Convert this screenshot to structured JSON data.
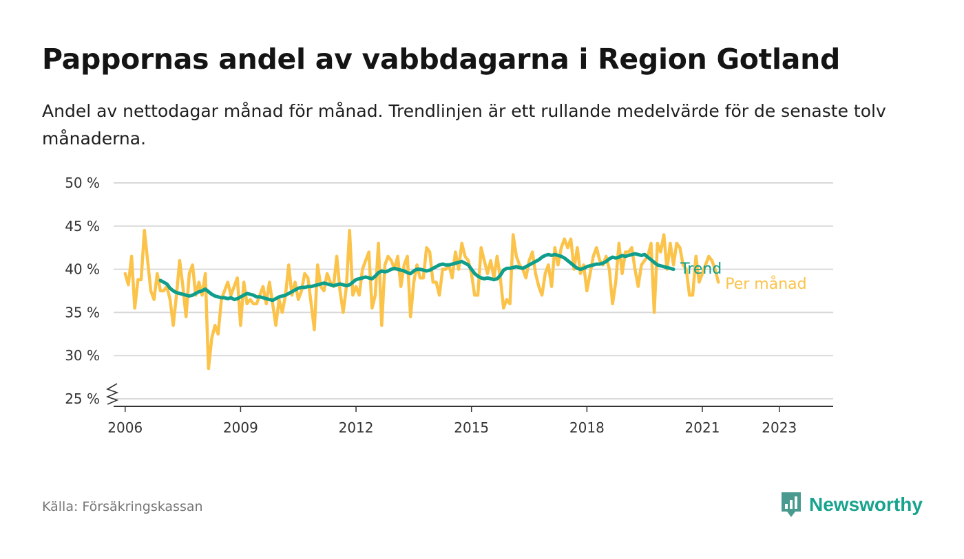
{
  "title": "Pappornas andel av vabbdagarna i Region Gotland",
  "subtitle": "Andel av nettodagar månad för månad. Trendlinjen är ett rullande medelvärde för de senaste tolv månaderna.",
  "source": "Källa: Försäkringskassan",
  "brand": "Newsworthy",
  "colors": {
    "monthly": "#fbc34a",
    "trend": "#0f9e8b",
    "grid": "#d9d9d9",
    "axis": "#333333"
  },
  "chart_data": {
    "type": "line",
    "title": "Pappornas andel av vabbdagarna i Region Gotland",
    "xlabel": "",
    "ylabel": "",
    "xlim": [
      2005.7,
      2024.4
    ],
    "ylim": [
      25,
      50
    ],
    "y_ticks": [
      25,
      30,
      35,
      40,
      45,
      50
    ],
    "y_tick_labels": [
      "25 %",
      "30 %",
      "35 %",
      "40 %",
      "45 %",
      "50 %"
    ],
    "x_ticks": [
      2006,
      2009,
      2012,
      2015,
      2018,
      2021,
      2023
    ],
    "x_tick_labels": [
      "2006",
      "2009",
      "2012",
      "2015",
      "2018",
      "2021",
      "2023"
    ],
    "grid": true,
    "axis_break": true,
    "series": [
      {
        "name": "Per månad",
        "start": 2006.0,
        "step": 0.08333,
        "values": [
          39.5,
          38.2,
          41.5,
          35.5,
          38.8,
          38.8,
          44.5,
          41.0,
          37.5,
          36.5,
          39.5,
          37.5,
          37.5,
          38.0,
          36.5,
          33.5,
          37.0,
          41.0,
          38.0,
          34.5,
          39.5,
          40.5,
          37.0,
          38.5,
          37.0,
          39.5,
          28.5,
          32.0,
          33.5,
          32.5,
          36.5,
          37.5,
          38.5,
          37.0,
          38.0,
          39.0,
          33.5,
          38.5,
          36.0,
          36.5,
          36.0,
          36.0,
          37.0,
          38.0,
          36.0,
          38.5,
          36.0,
          33.5,
          36.5,
          35.0,
          37.0,
          40.5,
          37.0,
          38.5,
          36.5,
          37.5,
          39.5,
          39.0,
          36.0,
          33.0,
          40.5,
          38.0,
          37.5,
          39.5,
          38.5,
          38.0,
          41.5,
          37.5,
          35.0,
          38.0,
          44.5,
          37.0,
          38.0,
          37.0,
          40.0,
          41.0,
          42.0,
          35.5,
          37.0,
          43.0,
          33.5,
          40.5,
          41.5,
          41.0,
          40.0,
          41.5,
          38.0,
          40.5,
          41.5,
          34.5,
          38.5,
          40.5,
          39.0,
          39.0,
          42.5,
          42.0,
          38.5,
          38.5,
          37.0,
          40.0,
          40.0,
          40.5,
          39.0,
          42.0,
          40.0,
          43.0,
          41.5,
          41.0,
          39.5,
          37.0,
          37.0,
          42.5,
          41.0,
          39.5,
          41.0,
          39.0,
          41.5,
          39.0,
          35.5,
          36.5,
          36.0,
          44.0,
          41.5,
          40.5,
          40.0,
          39.0,
          41.0,
          42.0,
          39.5,
          38.0,
          37.0,
          39.5,
          40.5,
          38.0,
          42.5,
          40.5,
          42.5,
          43.5,
          42.5,
          43.5,
          40.0,
          42.5,
          39.5,
          40.5,
          37.5,
          39.5,
          41.5,
          42.5,
          41.0,
          40.5,
          41.5,
          40.0,
          36.0,
          38.5,
          43.0,
          39.5,
          42.0,
          42.0,
          42.5,
          40.0,
          38.0,
          40.5,
          41.0,
          41.5,
          43.0,
          35.0,
          43.0,
          42.0,
          44.0,
          40.0,
          43.0,
          40.5,
          43.0,
          42.5,
          40.5,
          40.0,
          37.0,
          37.0,
          41.5,
          38.5,
          39.5,
          40.5,
          41.5,
          41.0,
          40.0,
          38.5
        ]
      },
      {
        "name": "Trend",
        "start": 2006.917,
        "step": 0.08333,
        "values": [
          38.7,
          38.5,
          38.3,
          37.8,
          37.5,
          37.3,
          37.2,
          37.1,
          37.0,
          36.9,
          37.0,
          37.2,
          37.4,
          37.5,
          37.7,
          37.4,
          37.1,
          36.9,
          36.8,
          36.7,
          36.7,
          36.6,
          36.7,
          36.5,
          36.6,
          36.8,
          37.0,
          37.2,
          37.1,
          37.0,
          36.8,
          36.8,
          36.7,
          36.6,
          36.5,
          36.4,
          36.6,
          36.8,
          36.9,
          37.0,
          37.2,
          37.4,
          37.6,
          37.8,
          37.9,
          37.9,
          38.0,
          38.0,
          38.1,
          38.2,
          38.3,
          38.4,
          38.3,
          38.2,
          38.1,
          38.2,
          38.3,
          38.2,
          38.1,
          38.2,
          38.5,
          38.8,
          38.9,
          39.0,
          39.1,
          39.0,
          38.9,
          39.2,
          39.6,
          39.8,
          39.7,
          39.8,
          40.0,
          40.1,
          40.0,
          39.9,
          39.8,
          39.6,
          39.5,
          39.8,
          40.0,
          40.0,
          39.9,
          39.8,
          39.9,
          40.1,
          40.3,
          40.5,
          40.6,
          40.5,
          40.5,
          40.6,
          40.7,
          40.8,
          40.9,
          40.7,
          40.5,
          40.0,
          39.5,
          39.2,
          39.0,
          38.9,
          39.0,
          38.9,
          38.8,
          38.9,
          39.3,
          39.9,
          40.1,
          40.1,
          40.2,
          40.3,
          40.2,
          40.1,
          40.3,
          40.5,
          40.7,
          40.9,
          41.1,
          41.4,
          41.6,
          41.7,
          41.6,
          41.7,
          41.6,
          41.5,
          41.3,
          41.0,
          40.7,
          40.4,
          40.1,
          40.0,
          40.1,
          40.3,
          40.4,
          40.5,
          40.6,
          40.6,
          40.7,
          40.9,
          41.2,
          41.4,
          41.3,
          41.4,
          41.6,
          41.5,
          41.6,
          41.7,
          41.8,
          41.7,
          41.6,
          41.7,
          41.4,
          41.1,
          40.8,
          40.5,
          40.4,
          40.3,
          40.2,
          40.1,
          40.0
        ]
      }
    ],
    "legend": [
      {
        "name": "Trend",
        "position": "end-of-line"
      },
      {
        "name": "Per månad",
        "position": "end-of-line"
      }
    ]
  }
}
